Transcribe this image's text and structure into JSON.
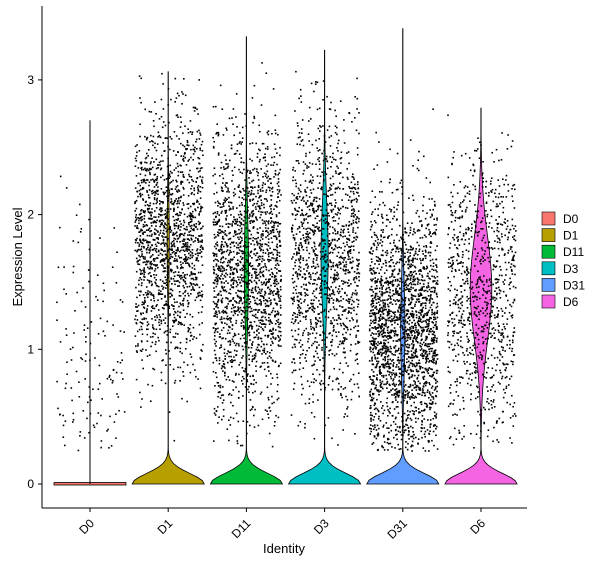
{
  "chart_data": {
    "type": "violin",
    "xlabel": "Identity",
    "ylabel": "Expression Level",
    "categories": [
      "D0",
      "D1",
      "D11",
      "D3",
      "D31",
      "D6"
    ],
    "y_ticks": [
      0,
      1,
      2,
      3
    ],
    "ylim": [
      -0.18,
      3.5
    ],
    "legend_position": "right",
    "grid": false,
    "series": [
      {
        "name": "D0",
        "color": "#F8766D",
        "max": 2.7,
        "fraction_zero": 0.9,
        "mode": 0.9,
        "spread": 0.55,
        "peak_width": 0.02,
        "points": 140
      },
      {
        "name": "D1",
        "color": "#B79F00",
        "max": 3.06,
        "fraction_zero": 0.3,
        "mode": 1.8,
        "spread": 0.45,
        "peak_width": 0.03,
        "points": 1500
      },
      {
        "name": "D11",
        "color": "#00BA38",
        "max": 3.32,
        "fraction_zero": 0.3,
        "mode": 1.6,
        "spread": 0.5,
        "peak_width": 0.06,
        "points": 1700
      },
      {
        "name": "D3",
        "color": "#00BFC4",
        "max": 3.22,
        "fraction_zero": 0.3,
        "mode": 1.7,
        "spread": 0.5,
        "peak_width": 0.1,
        "points": 1300
      },
      {
        "name": "D31",
        "color": "#619CFF",
        "max": 3.38,
        "fraction_zero": 0.3,
        "mode": 1.15,
        "spread": 0.45,
        "peak_width": 0.06,
        "points": 2100
      },
      {
        "name": "D6",
        "color": "#F564E3",
        "max": 2.79,
        "fraction_zero": 0.3,
        "mode": 1.45,
        "spread": 0.5,
        "peak_width": 0.3,
        "points": 900
      }
    ]
  }
}
